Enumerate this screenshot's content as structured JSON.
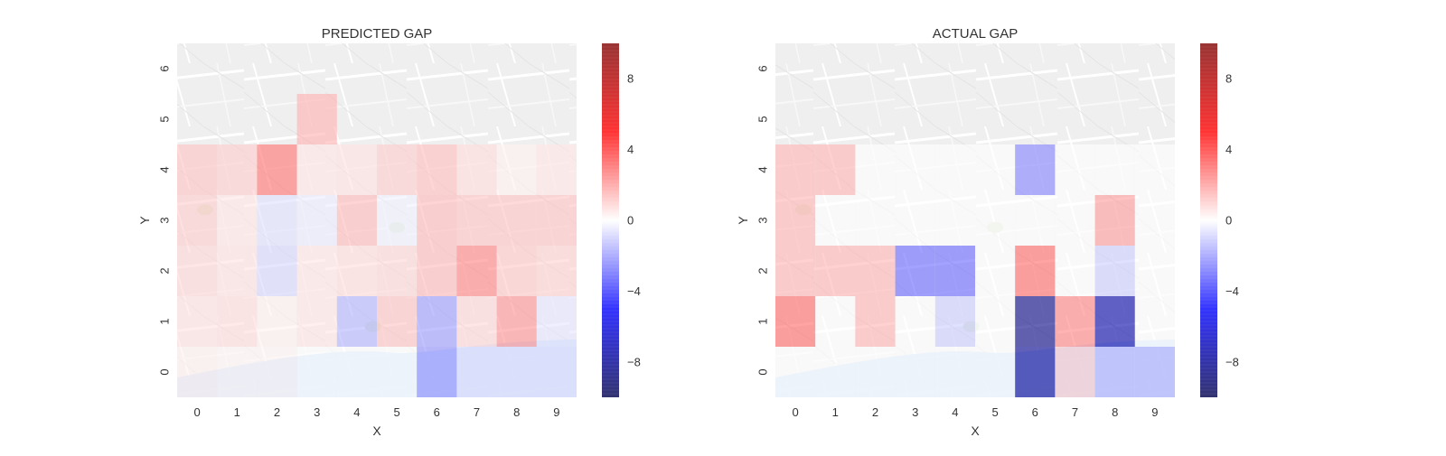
{
  "chart_data": [
    {
      "type": "heatmap",
      "title": "PREDICTED GAP",
      "xlabel": "X",
      "ylabel": "Y",
      "x_ticks": [
        "0",
        "1",
        "2",
        "3",
        "4",
        "5",
        "6",
        "7",
        "8",
        "9"
      ],
      "y_ticks": [
        "0",
        "1",
        "2",
        "3",
        "4",
        "5",
        "6"
      ],
      "colorbar": {
        "min": -10,
        "max": 10,
        "ticks": [
          8,
          4,
          0,
          -4,
          -8
        ],
        "tick_labels": [
          "8",
          "4",
          "0",
          "−4",
          "−8"
        ],
        "colormap": "seismic"
      },
      "values": [
        [
          0.3,
          0.2,
          0.2,
          0.0,
          0.0,
          0.0,
          -2.2,
          -0.6,
          -0.6,
          -0.6
        ],
        [
          0.6,
          0.7,
          0.3,
          0.5,
          -1.5,
          1.2,
          -2.0,
          0.8,
          2.2,
          -0.5
        ],
        [
          0.8,
          0.6,
          -0.8,
          0.5,
          0.7,
          0.8,
          1.4,
          2.5,
          1.1,
          0.9
        ],
        [
          1.0,
          0.5,
          -0.6,
          -0.4,
          1.4,
          -0.3,
          1.4,
          1.2,
          1.2,
          1.2
        ],
        [
          1.2,
          1.0,
          2.8,
          0.5,
          0.6,
          1.0,
          1.3,
          0.7,
          0.3,
          0.5
        ],
        [
          null,
          null,
          null,
          1.6,
          null,
          null,
          null,
          null,
          null,
          null
        ],
        [
          null,
          null,
          null,
          null,
          null,
          null,
          null,
          null,
          null,
          null
        ]
      ]
    },
    {
      "type": "heatmap",
      "title": "ACTUAL GAP",
      "xlabel": "X",
      "ylabel": "Y",
      "x_ticks": [
        "0",
        "1",
        "2",
        "3",
        "4",
        "5",
        "6",
        "7",
        "8",
        "9"
      ],
      "y_ticks": [
        "0",
        "1",
        "2",
        "3",
        "4",
        "5",
        "6"
      ],
      "colorbar": {
        "min": -10,
        "max": 10,
        "ticks": [
          8,
          4,
          0,
          -4,
          -8
        ],
        "tick_labels": [
          "8",
          "4",
          "0",
          "−4",
          "−8"
        ],
        "colormap": "seismic"
      },
      "values": [
        [
          0.0,
          0.0,
          0.0,
          0.0,
          0.0,
          0.0,
          -8.0,
          1.0,
          -1.5,
          -1.5
        ],
        [
          3.0,
          0.0,
          1.5,
          0.0,
          -1.0,
          0.0,
          -8.5,
          2.5,
          -7.5,
          0.0
        ],
        [
          1.5,
          1.5,
          1.5,
          -3.0,
          -3.0,
          0.0,
          3.0,
          0.0,
          -1.0,
          0.0
        ],
        [
          1.5,
          0.0,
          0.0,
          0.0,
          0.0,
          0.0,
          0.0,
          0.0,
          2.0,
          0.0
        ],
        [
          1.5,
          1.5,
          0.0,
          0.0,
          0.0,
          0.0,
          -2.5,
          0.0,
          0.0,
          0.0
        ],
        [
          null,
          null,
          null,
          null,
          null,
          null,
          null,
          null,
          null,
          null
        ],
        [
          null,
          null,
          null,
          null,
          null,
          null,
          null,
          null,
          null,
          null
        ]
      ]
    }
  ]
}
